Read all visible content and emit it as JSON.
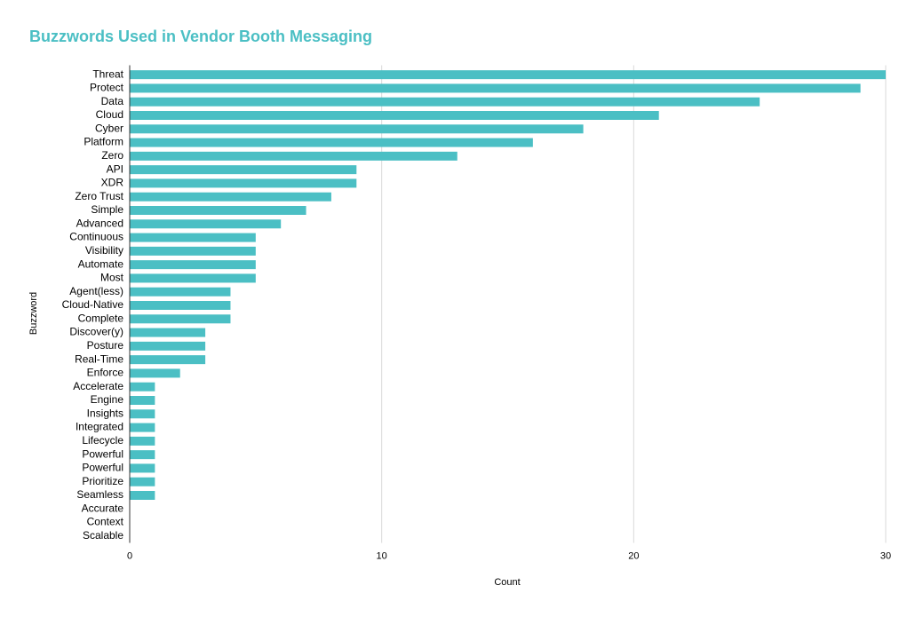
{
  "chart_data": {
    "type": "bar",
    "orientation": "horizontal",
    "title": "Buzzwords Used in Vendor Booth Messaging",
    "x_label": "Count",
    "y_label": "Buzzword",
    "categories": [
      "Threat",
      "Protect",
      "Data",
      "Cloud",
      "Cyber",
      "Platform",
      "Zero",
      "API",
      "XDR",
      "Zero Trust",
      "Simple",
      "Advanced",
      "Continuous",
      "Visibility",
      "Automate",
      "Most",
      "Agent(less)",
      "Cloud-Native",
      "Complete",
      "Discover(y)",
      "Posture",
      "Real-Time",
      "Enforce",
      "Accelerate",
      "Engine",
      "Insights",
      "Integrated",
      "Lifecycle",
      "Powerful",
      "Powerful",
      "Prioritize",
      "Seamless",
      "Accurate",
      "Context",
      "Scalable"
    ],
    "values": [
      30,
      29,
      25,
      21,
      18,
      16,
      13,
      9,
      9,
      8,
      7,
      6,
      5,
      5,
      5,
      5,
      4,
      4,
      4,
      3,
      3,
      3,
      2,
      1,
      1,
      1,
      1,
      1,
      1,
      1,
      1,
      1,
      0,
      0,
      0
    ],
    "color": "#4bbfc4",
    "xlim": [
      0,
      30
    ],
    "xticks": [
      0,
      10,
      20,
      30
    ],
    "grid": true
  }
}
